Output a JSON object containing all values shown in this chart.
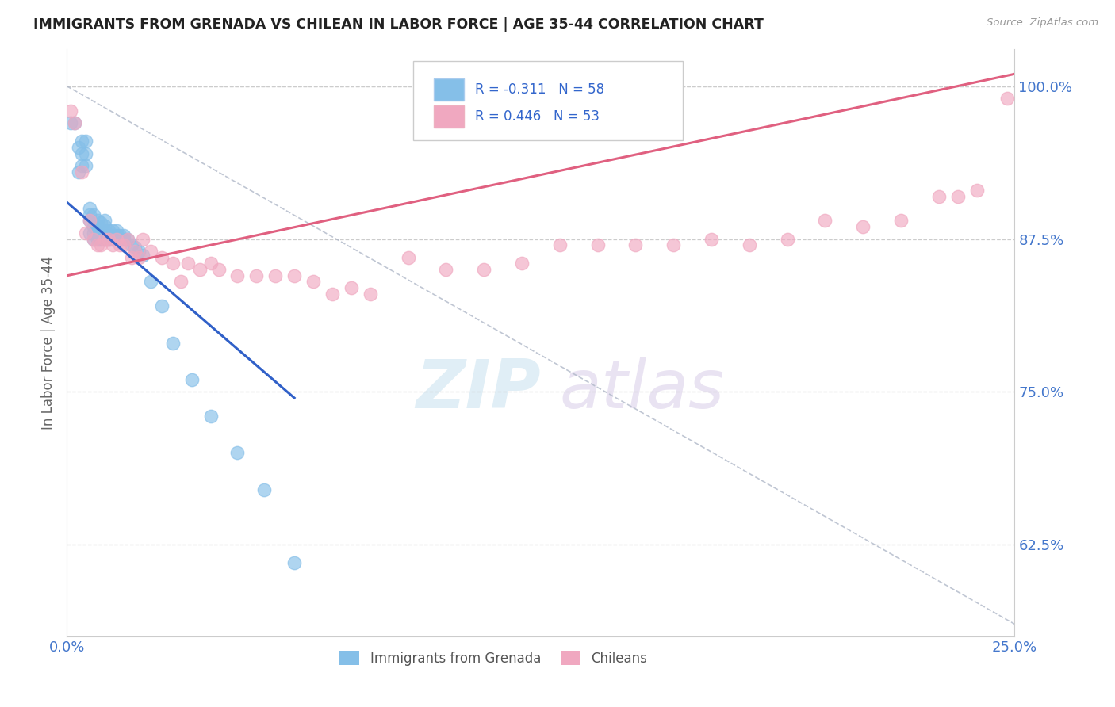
{
  "title": "IMMIGRANTS FROM GRENADA VS CHILEAN IN LABOR FORCE | AGE 35-44 CORRELATION CHART",
  "source_text": "Source: ZipAtlas.com",
  "ylabel": "In Labor Force | Age 35-44",
  "x_min": 0.0,
  "x_max": 0.25,
  "y_min": 0.55,
  "y_max": 1.03,
  "y_ticks": [
    0.625,
    0.75,
    0.875,
    1.0
  ],
  "y_tick_labels": [
    "62.5%",
    "75.0%",
    "87.5%",
    "100.0%"
  ],
  "x_ticks": [
    0.0,
    0.25
  ],
  "x_tick_labels": [
    "0.0%",
    "25.0%"
  ],
  "legend_r1": "R = -0.311",
  "legend_n1": "N = 58",
  "legend_r2": "R = 0.446",
  "legend_n2": "N = 53",
  "grenada_color": "#85bfe8",
  "chilean_color": "#f0a8c0",
  "grenada_line_color": "#3060c8",
  "chilean_line_color": "#e06080",
  "grenada_x": [
    0.001,
    0.002,
    0.003,
    0.003,
    0.004,
    0.004,
    0.004,
    0.005,
    0.005,
    0.005,
    0.006,
    0.006,
    0.006,
    0.006,
    0.007,
    0.007,
    0.007,
    0.007,
    0.008,
    0.008,
    0.008,
    0.008,
    0.008,
    0.009,
    0.009,
    0.009,
    0.009,
    0.01,
    0.01,
    0.01,
    0.01,
    0.01,
    0.011,
    0.011,
    0.011,
    0.012,
    0.012,
    0.012,
    0.013,
    0.013,
    0.013,
    0.014,
    0.014,
    0.015,
    0.015,
    0.016,
    0.017,
    0.018,
    0.019,
    0.02,
    0.022,
    0.025,
    0.028,
    0.033,
    0.038,
    0.045,
    0.052,
    0.06
  ],
  "grenada_y": [
    0.97,
    0.97,
    0.93,
    0.95,
    0.935,
    0.945,
    0.955,
    0.935,
    0.945,
    0.955,
    0.88,
    0.89,
    0.895,
    0.9,
    0.875,
    0.88,
    0.885,
    0.895,
    0.875,
    0.878,
    0.882,
    0.886,
    0.89,
    0.875,
    0.878,
    0.882,
    0.888,
    0.875,
    0.878,
    0.882,
    0.886,
    0.89,
    0.875,
    0.878,
    0.882,
    0.875,
    0.878,
    0.882,
    0.875,
    0.878,
    0.882,
    0.875,
    0.878,
    0.875,
    0.878,
    0.875,
    0.87,
    0.868,
    0.865,
    0.862,
    0.84,
    0.82,
    0.79,
    0.76,
    0.73,
    0.7,
    0.67,
    0.61
  ],
  "chilean_x": [
    0.001,
    0.002,
    0.004,
    0.005,
    0.006,
    0.007,
    0.008,
    0.009,
    0.01,
    0.011,
    0.012,
    0.013,
    0.014,
    0.015,
    0.016,
    0.017,
    0.018,
    0.019,
    0.02,
    0.022,
    0.025,
    0.028,
    0.03,
    0.032,
    0.035,
    0.038,
    0.04,
    0.045,
    0.05,
    0.055,
    0.06,
    0.065,
    0.07,
    0.075,
    0.08,
    0.09,
    0.1,
    0.11,
    0.12,
    0.13,
    0.14,
    0.15,
    0.16,
    0.17,
    0.18,
    0.19,
    0.2,
    0.21,
    0.22,
    0.23,
    0.235,
    0.24,
    0.248
  ],
  "chilean_y": [
    0.98,
    0.97,
    0.93,
    0.88,
    0.89,
    0.875,
    0.87,
    0.87,
    0.875,
    0.875,
    0.87,
    0.875,
    0.87,
    0.87,
    0.875,
    0.86,
    0.865,
    0.86,
    0.875,
    0.865,
    0.86,
    0.855,
    0.84,
    0.855,
    0.85,
    0.855,
    0.85,
    0.845,
    0.845,
    0.845,
    0.845,
    0.84,
    0.83,
    0.835,
    0.83,
    0.86,
    0.85,
    0.85,
    0.855,
    0.87,
    0.87,
    0.87,
    0.87,
    0.875,
    0.87,
    0.875,
    0.89,
    0.885,
    0.89,
    0.91,
    0.91,
    0.915,
    0.99
  ],
  "grenada_line_x": [
    0.0,
    0.06
  ],
  "grenada_line_y": [
    0.905,
    0.745
  ],
  "chilean_line_x": [
    0.0,
    0.25
  ],
  "chilean_line_y": [
    0.845,
    1.01
  ],
  "diag_line_x": [
    0.0,
    0.25
  ],
  "diag_line_y": [
    1.0,
    0.56
  ]
}
